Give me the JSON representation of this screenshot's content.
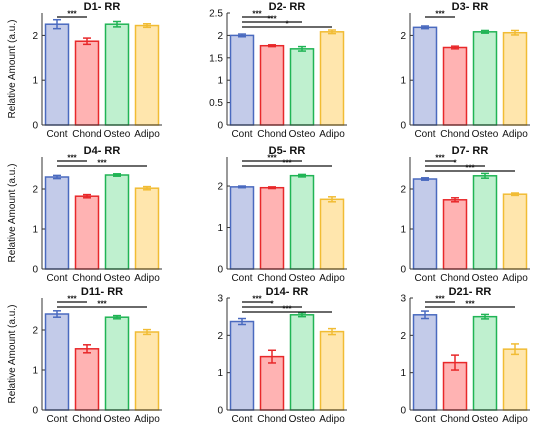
{
  "colors": {
    "Cont": {
      "fill": "#c3cbe9",
      "stroke": "#4a6abf"
    },
    "Chond": {
      "fill": "#ffb3b3",
      "stroke": "#e8282a"
    },
    "Osteo": {
      "fill": "#bff0cf",
      "stroke": "#20b455"
    },
    "Adipo": {
      "fill": "#ffe6ad",
      "stroke": "#f1bc34"
    }
  },
  "chart_data": [
    {
      "type": "bar",
      "title": "D1- RR",
      "ylabel": "Relative Amount (a.u.)",
      "categories": [
        "Cont",
        "Chond",
        "Osteo",
        "Adipo"
      ],
      "values": [
        2.25,
        1.87,
        2.25,
        2.22
      ],
      "errors": [
        0.1,
        0.07,
        0.06,
        0.04
      ],
      "ylim": [
        0,
        2.5
      ],
      "yticks": [
        "0",
        "1",
        "2"
      ],
      "ytick_values": [
        0,
        1,
        2
      ],
      "brackets": [
        {
          "from": "Cont",
          "to": "Chond",
          "label": "***"
        }
      ]
    },
    {
      "type": "bar",
      "title": "D2- RR",
      "ylabel": "",
      "categories": [
        "Cont",
        "Chond",
        "Osteo",
        "Adipo"
      ],
      "values": [
        2.0,
        1.77,
        1.7,
        2.08
      ],
      "errors": [
        0.03,
        0.02,
        0.05,
        0.04
      ],
      "ylim": [
        0,
        2.5
      ],
      "yticks": [
        "0",
        "0.5",
        "1",
        "1.5",
        "2",
        "2.5"
      ],
      "ytick_values": [
        0,
        0.5,
        1,
        1.5,
        2,
        2.5
      ],
      "brackets": [
        {
          "from": "Cont",
          "to": "Chond",
          "label": "***"
        },
        {
          "from": "Cont",
          "to": "Osteo",
          "label": "***"
        },
        {
          "from": "Cont",
          "to": "Adipo",
          "label": "*"
        }
      ]
    },
    {
      "type": "bar",
      "title": "D3- RR",
      "ylabel": "",
      "categories": [
        "Cont",
        "Chond",
        "Osteo",
        "Adipo"
      ],
      "values": [
        2.18,
        1.73,
        2.08,
        2.06
      ],
      "errors": [
        0.03,
        0.03,
        0.03,
        0.05
      ],
      "ylim": [
        0,
        2.5
      ],
      "yticks": [
        "0",
        "1",
        "2"
      ],
      "ytick_values": [
        0,
        1,
        2
      ],
      "brackets": [
        {
          "from": "Cont",
          "to": "Chond",
          "label": "***"
        }
      ]
    },
    {
      "type": "bar",
      "title": "D4- RR",
      "ylabel": "Relative Amount (a.u.)",
      "categories": [
        "Cont",
        "Chond",
        "Osteo",
        "Adipo"
      ],
      "values": [
        2.3,
        1.82,
        2.35,
        2.02
      ],
      "errors": [
        0.04,
        0.04,
        0.03,
        0.04
      ],
      "ylim": [
        0,
        2.8
      ],
      "yticks": [
        "0",
        "1",
        "2"
      ],
      "ytick_values": [
        0,
        1,
        2
      ],
      "brackets": [
        {
          "from": "Cont",
          "to": "Chond",
          "label": "***"
        },
        {
          "from": "Cont",
          "to": "Adipo",
          "label": "***"
        }
      ]
    },
    {
      "type": "bar",
      "title": "D5- RR",
      "ylabel": "",
      "categories": [
        "Cont",
        "Chond",
        "Osteo",
        "Adipo"
      ],
      "values": [
        1.98,
        1.96,
        2.25,
        1.68
      ],
      "errors": [
        0.02,
        0.02,
        0.03,
        0.06
      ],
      "ylim": [
        0,
        2.7
      ],
      "yticks": [
        "0",
        "1",
        "2"
      ],
      "ytick_values": [
        0,
        1,
        2
      ],
      "brackets": [
        {
          "from": "Cont",
          "to": "Osteo",
          "label": "***"
        },
        {
          "from": "Cont",
          "to": "Adipo",
          "label": "***"
        }
      ]
    },
    {
      "type": "bar",
      "title": "D7- RR",
      "ylabel": "",
      "categories": [
        "Cont",
        "Chond",
        "Osteo",
        "Adipo"
      ],
      "values": [
        2.25,
        1.73,
        2.33,
        1.87
      ],
      "errors": [
        0.03,
        0.05,
        0.06,
        0.03
      ],
      "ylim": [
        0,
        2.8
      ],
      "yticks": [
        "0",
        "1",
        "2"
      ],
      "ytick_values": [
        0,
        1,
        2
      ],
      "brackets": [
        {
          "from": "Cont",
          "to": "Chond",
          "label": "***"
        },
        {
          "from": "Cont",
          "to": "Osteo",
          "label": "*"
        },
        {
          "from": "Cont",
          "to": "Adipo",
          "label": "***"
        }
      ]
    },
    {
      "type": "bar",
      "title": "D11- RR",
      "ylabel": "Relative Amount (a.u.)",
      "categories": [
        "Cont",
        "Chond",
        "Osteo",
        "Adipo"
      ],
      "values": [
        2.4,
        1.53,
        2.32,
        1.95
      ],
      "errors": [
        0.08,
        0.1,
        0.04,
        0.06
      ],
      "ylim": [
        0,
        2.8
      ],
      "yticks": [
        "0",
        "1",
        "2"
      ],
      "ytick_values": [
        0,
        1,
        2
      ],
      "brackets": [
        {
          "from": "Cont",
          "to": "Chond",
          "label": "***"
        },
        {
          "from": "Cont",
          "to": "Adipo",
          "label": "***"
        }
      ]
    },
    {
      "type": "bar",
      "title": "D14- RR",
      "ylabel": "",
      "categories": [
        "Cont",
        "Chond",
        "Osteo",
        "Adipo"
      ],
      "values": [
        2.37,
        1.43,
        2.55,
        2.1
      ],
      "errors": [
        0.08,
        0.17,
        0.05,
        0.08
      ],
      "ylim": [
        0,
        3.0
      ],
      "yticks": [
        "0",
        "1",
        "2",
        "3"
      ],
      "ytick_values": [
        0,
        1,
        2,
        3
      ],
      "brackets": [
        {
          "from": "Cont",
          "to": "Chond",
          "label": "***"
        },
        {
          "from": "Cont",
          "to": "Osteo",
          "label": "*"
        },
        {
          "from": "Cont",
          "to": "Adipo",
          "label": "***"
        }
      ]
    },
    {
      "type": "bar",
      "title": "D21- RR",
      "ylabel": "",
      "categories": [
        "Cont",
        "Chond",
        "Osteo",
        "Adipo"
      ],
      "values": [
        2.55,
        1.27,
        2.5,
        1.63
      ],
      "errors": [
        0.1,
        0.2,
        0.06,
        0.14
      ],
      "ylim": [
        0,
        3.0
      ],
      "yticks": [
        "0",
        "1",
        "2",
        "3"
      ],
      "ytick_values": [
        0,
        1,
        2,
        3
      ],
      "brackets": [
        {
          "from": "Cont",
          "to": "Chond",
          "label": "***"
        },
        {
          "from": "Cont",
          "to": "Adipo",
          "label": "***"
        }
      ]
    }
  ]
}
